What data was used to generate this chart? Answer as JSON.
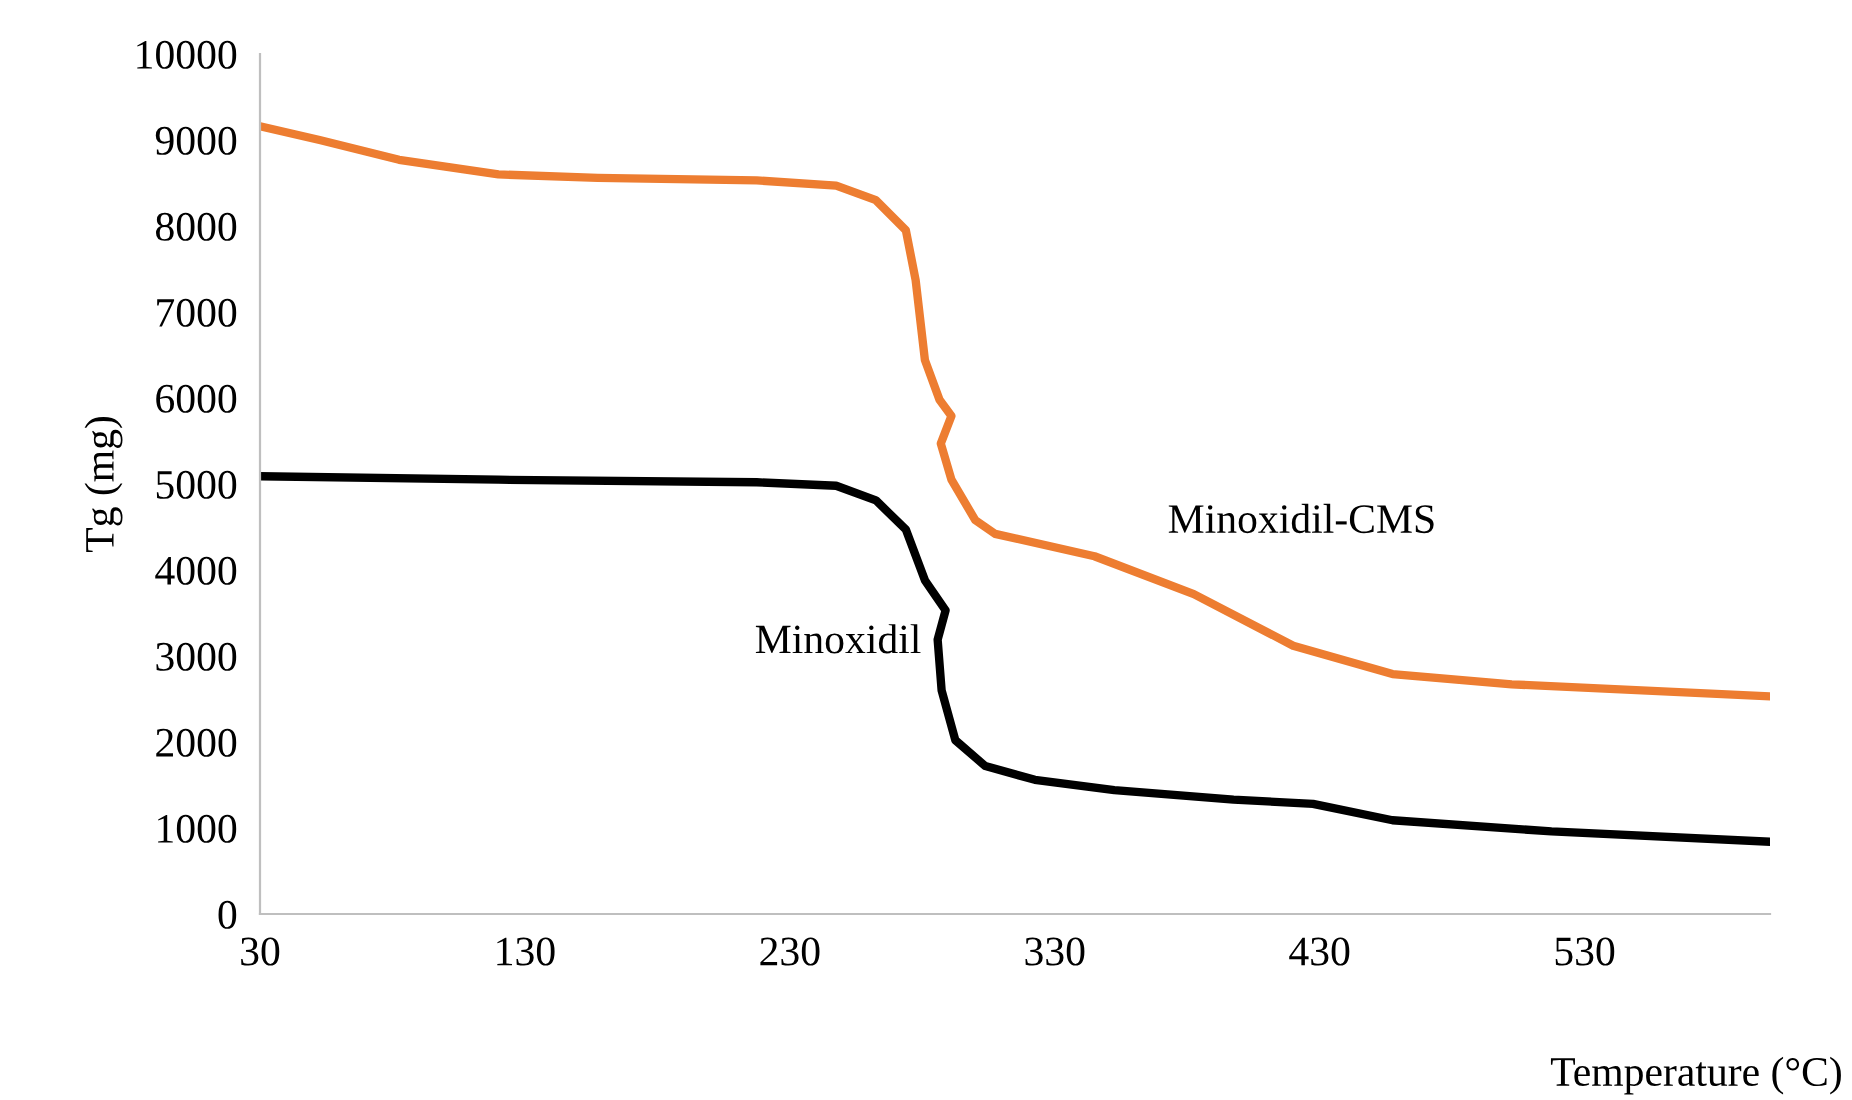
{
  "chart_data": {
    "type": "line",
    "xlabel": "Temperature (°C)",
    "ylabel": "Tg (mg)",
    "xlim": [
      30,
      600
    ],
    "xticks": [
      30,
      130,
      230,
      330,
      430,
      530
    ],
    "ylim": [
      0,
      10000
    ],
    "yticks": [
      0,
      1000,
      2000,
      3000,
      4000,
      5000,
      6000,
      7000,
      8000,
      9000,
      10000
    ],
    "grid": false,
    "legend": false,
    "marker": "none",
    "line_style": "solid",
    "series": [
      {
        "name": "Minoxidil-CMS",
        "color": "#ed7d31",
        "x": [
          30,
          52.5,
          82.5,
          120,
          157.5,
          217.5,
          247.5,
          262.5,
          273.8,
          277.5,
          281,
          286.5,
          291,
          287,
          291,
          300,
          307.5,
          345,
          382.5,
          420,
          457.5,
          502.5,
          600
        ],
        "values": [
          9160,
          9000,
          8770,
          8600,
          8560,
          8530,
          8470,
          8300,
          7950,
          7370,
          6440,
          5980,
          5790,
          5470,
          5050,
          4580,
          4420,
          4160,
          3720,
          3120,
          2790,
          2670,
          2530
        ]
      },
      {
        "name": "Minoxidil",
        "color": "#000000",
        "x": [
          30,
          120,
          217.5,
          247.5,
          262.5,
          273.8,
          281,
          288.8,
          285.8,
          287.3,
          292.5,
          303.8,
          322.5,
          352.5,
          397.5,
          427.5,
          457.5,
          517.5,
          600
        ],
        "values": [
          5090,
          5050,
          5020,
          4980,
          4810,
          4470,
          3880,
          3530,
          3190,
          2600,
          2020,
          1720,
          1560,
          1440,
          1330,
          1280,
          1090,
          960,
          840
        ]
      }
    ]
  }
}
